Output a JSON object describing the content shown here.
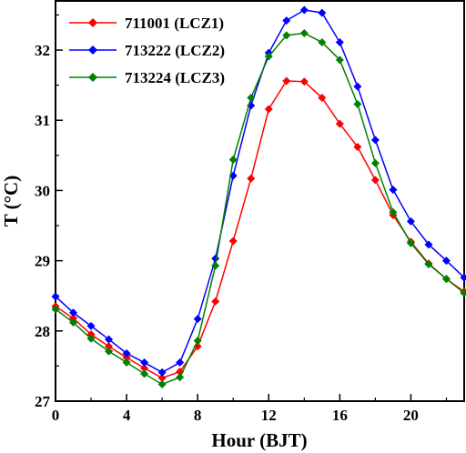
{
  "chart_data": {
    "type": "line",
    "xlabel": "Hour (BJT)",
    "ylabel": "T (°C)",
    "xlim": [
      0,
      23
    ],
    "ylim": [
      27,
      32.7
    ],
    "xticks": [
      0,
      4,
      8,
      12,
      16,
      20
    ],
    "yticks": [
      27,
      28,
      29,
      30,
      31,
      32
    ],
    "grid": false,
    "legend_position": "top-left",
    "x": [
      0,
      1,
      2,
      3,
      4,
      5,
      6,
      7,
      8,
      9,
      10,
      11,
      12,
      13,
      14,
      15,
      16,
      17,
      18,
      19,
      20,
      21,
      22,
      23
    ],
    "series": [
      {
        "name": "711001 (LCZ1)",
        "color": "#ff0000",
        "marker": "diamond",
        "values": [
          28.35,
          28.18,
          27.95,
          27.78,
          27.62,
          27.47,
          27.33,
          27.42,
          27.78,
          28.42,
          29.28,
          30.17,
          31.16,
          31.56,
          31.55,
          31.32,
          30.95,
          30.62,
          30.15,
          29.65,
          29.27,
          28.96,
          28.74,
          28.56
        ]
      },
      {
        "name": "713222 (LCZ2)",
        "color": "#0000ff",
        "marker": "diamond",
        "values": [
          28.49,
          28.26,
          28.07,
          27.88,
          27.68,
          27.55,
          27.41,
          27.55,
          28.17,
          29.03,
          30.21,
          31.21,
          31.96,
          32.42,
          32.57,
          32.53,
          32.11,
          31.48,
          30.72,
          30.01,
          29.56,
          29.23,
          29.0,
          28.76
        ]
      },
      {
        "name": "713224 (LCZ3)",
        "color": "#008000",
        "marker": "diamond",
        "values": [
          28.31,
          28.12,
          27.89,
          27.71,
          27.55,
          27.39,
          27.24,
          27.34,
          27.86,
          28.93,
          30.44,
          31.32,
          31.91,
          32.21,
          32.24,
          32.11,
          31.86,
          31.23,
          30.39,
          29.69,
          29.25,
          28.95,
          28.74,
          28.54
        ]
      }
    ]
  }
}
